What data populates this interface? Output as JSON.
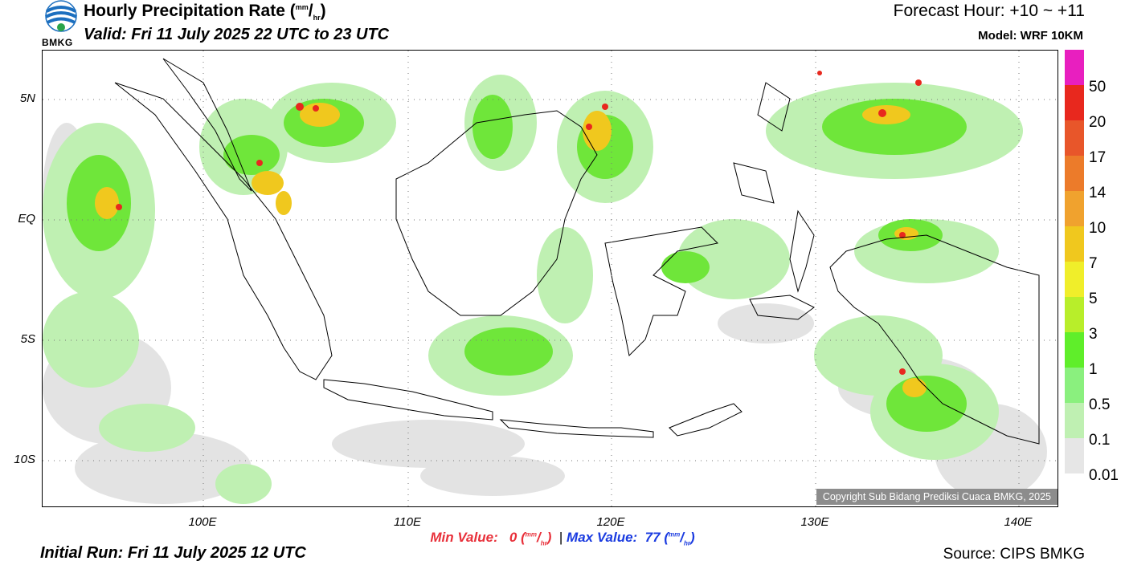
{
  "header": {
    "title_prefix": "Hourly Precipitation Rate (",
    "title_unit_sup": "mm",
    "title_unit_slash": "/",
    "title_unit_sub": "hr",
    "title_suffix": ")",
    "valid": "Valid: Fri 11 July 2025 22 UTC to 23 UTC",
    "forecast_hour": "Forecast Hour: +10 ~ +11",
    "model": "Model: WRF 10KM"
  },
  "logo": {
    "text": "BMKG",
    "icon": "bmkg-logo-icon"
  },
  "map": {
    "x_ticks": [
      "100E",
      "110E",
      "120E",
      "130E",
      "140E"
    ],
    "y_ticks": [
      "5N",
      "EQ",
      "5S",
      "10S"
    ],
    "copyright": "Copyright Sub Bidang Prediksi Cuaca BMKG, 2025"
  },
  "colorbar": {
    "labels": [
      "50",
      "20",
      "17",
      "14",
      "10",
      "7",
      "5",
      "3",
      "1",
      "0.5",
      "0.1",
      "0.01"
    ],
    "colors": [
      "#e81fbf",
      "#e8281e",
      "#e8562a",
      "#ec7b2a",
      "#f0a22e",
      "#f0c81e",
      "#f0ee2a",
      "#b8ee2a",
      "#5fee2a",
      "#8af07e",
      "#bff0b2",
      "#e6e6e6"
    ]
  },
  "footer": {
    "min_label": "Min Value:",
    "min_value": "0",
    "max_label": "Max Value:",
    "max_value": "77",
    "unit_sup": "mm",
    "unit_slash": "/",
    "unit_sub": "hr",
    "separator": "|",
    "initial_run": "Initial Run: Fri 11 July 2025 12 UTC",
    "source": "Source: CIPS BMKG"
  }
}
